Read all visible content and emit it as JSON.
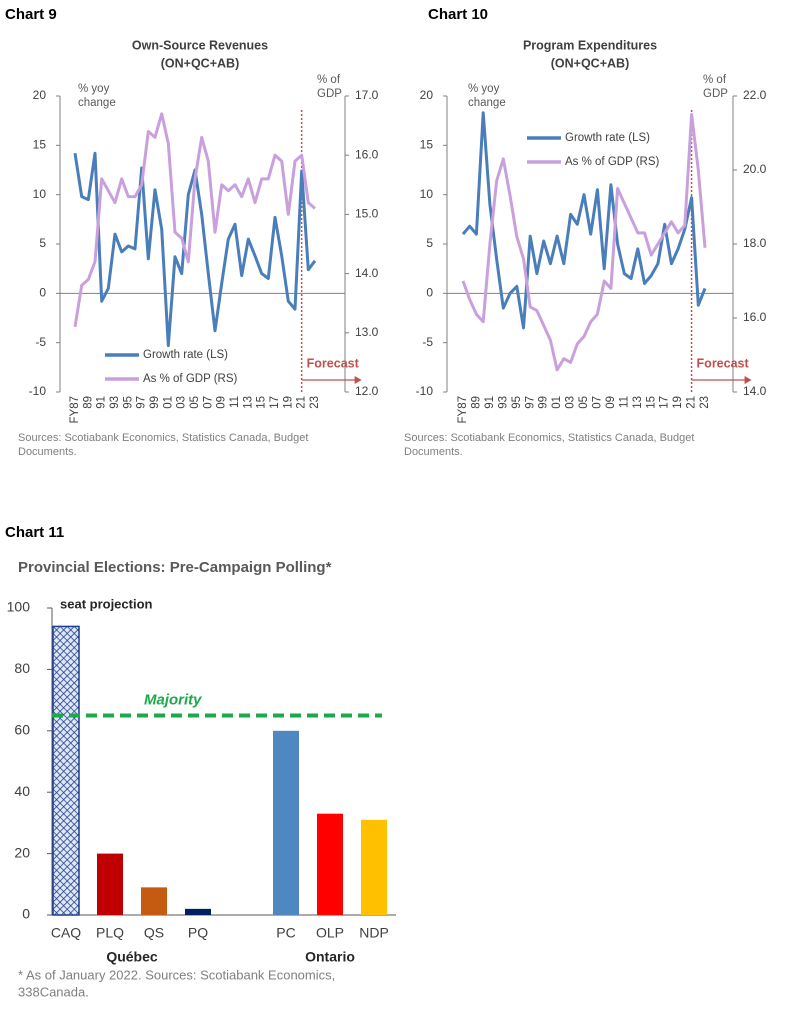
{
  "chart_data": [
    {
      "type": "line",
      "chart_label": "Chart 9",
      "title": "Own-Source Revenues",
      "subtitle": "(ON+QC+AB)",
      "ylabel": [
        "% yoy",
        "change"
      ],
      "y2label": [
        "% of",
        "GDP"
      ],
      "categories": [
        "FY87",
        null,
        "89",
        null,
        "91",
        null,
        "93",
        null,
        "95",
        null,
        "97",
        null,
        "99",
        null,
        "01",
        null,
        "03",
        null,
        "05",
        null,
        "07",
        null,
        "09",
        null,
        "11",
        null,
        "13",
        null,
        "15",
        null,
        "17",
        null,
        "19",
        null,
        "21",
        null,
        "23"
      ],
      "series": [
        {
          "name": "Growth rate (LS)",
          "color": "#4a7ebb",
          "values": [
            14.2,
            9.8,
            9.5,
            14.2,
            -0.8,
            0.5,
            6.0,
            4.2,
            4.8,
            4.5,
            12.7,
            3.5,
            10.5,
            6.5,
            -5.3,
            3.7,
            2.0,
            10.0,
            12.5,
            8.0,
            2.0,
            -3.8,
            1.0,
            5.5,
            7.0,
            1.8,
            5.5,
            3.8,
            2.0,
            1.5,
            7.7,
            3.8,
            -0.8,
            -1.6,
            12.4,
            2.4,
            3.3
          ]
        },
        {
          "name": "As % of GDP (RS)",
          "color": "#c9a0dc",
          "axis": "y2",
          "values": [
            13.1,
            13.8,
            13.9,
            14.2,
            15.6,
            15.4,
            15.2,
            15.6,
            15.3,
            15.3,
            15.5,
            16.4,
            16.3,
            16.7,
            16.2,
            14.7,
            14.6,
            14.2,
            15.6,
            16.3,
            15.9,
            14.7,
            15.5,
            15.4,
            15.5,
            15.3,
            15.6,
            15.2,
            15.6,
            15.6,
            16.0,
            15.9,
            15.0,
            15.9,
            16.0,
            15.2,
            15.1
          ]
        }
      ],
      "ylim": [
        -10,
        20
      ],
      "yticks": [
        -10,
        -5,
        0,
        5,
        10,
        15,
        20
      ],
      "y2lim": [
        12,
        17
      ],
      "y2ticks": [
        {
          "value": 12,
          "label": "12.0"
        },
        {
          "value": 13,
          "label": "13.0"
        },
        {
          "value": 14,
          "label": "14.0"
        },
        {
          "value": 15,
          "label": "15.0"
        },
        {
          "value": 16,
          "label": "16.0"
        },
        {
          "value": 17,
          "label": "17.0"
        }
      ],
      "legend": "lower left",
      "forecast_label": "Forecast",
      "forecast_start": "21",
      "forecast_color": "#c0504d",
      "source": [
        "Sources: Scotiabank Economics, Statistics Canada, Budget",
        "Documents."
      ]
    },
    {
      "type": "line",
      "chart_label": "Chart 10",
      "title": "Program Expenditures",
      "subtitle": "(ON+QC+AB)",
      "ylabel": [
        "% yoy",
        "change"
      ],
      "y2label": [
        "% of",
        "GDP"
      ],
      "categories": [
        "FY87",
        null,
        "89",
        null,
        "91",
        null,
        "93",
        null,
        "95",
        null,
        "97",
        null,
        "99",
        null,
        "01",
        null,
        "03",
        null,
        "05",
        null,
        "07",
        null,
        "09",
        null,
        "11",
        null,
        "13",
        null,
        "15",
        null,
        "17",
        null,
        "19",
        null,
        "21",
        null,
        "23"
      ],
      "series": [
        {
          "name": "Growth rate (LS)",
          "color": "#4a7ebb",
          "values": [
            6.0,
            6.8,
            6.0,
            18.3,
            9.0,
            3.5,
            -1.5,
            0,
            0.7,
            -3.5,
            5.8,
            2.0,
            5.3,
            3.0,
            5.8,
            3.0,
            8.0,
            7.0,
            10.0,
            6.0,
            10.5,
            2.5,
            11.0,
            5.0,
            2.0,
            1.5,
            4.5,
            1.0,
            1.8,
            3.0,
            7.0,
            3.0,
            4.5,
            6.5,
            9.7,
            -1.2,
            0.5
          ]
        },
        {
          "name": "As % of GDP (RS)",
          "color": "#c9a0dc",
          "axis": "y2",
          "values": [
            17.0,
            16.5,
            16.1,
            15.9,
            18.0,
            19.7,
            20.3,
            19.3,
            18.2,
            17.6,
            16.3,
            16.2,
            15.8,
            15.4,
            14.6,
            14.9,
            14.8,
            15.3,
            15.5,
            15.9,
            16.1,
            17.0,
            16.8,
            19.5,
            19.1,
            18.7,
            18.3,
            18.3,
            17.7,
            18.0,
            18.3,
            18.6,
            18.3,
            18.5,
            21.5,
            20.0,
            17.9
          ]
        }
      ],
      "ylim": [
        -10,
        20
      ],
      "yticks": [
        -10,
        -5,
        0,
        5,
        10,
        15,
        20
      ],
      "y2lim": [
        14,
        22
      ],
      "y2ticks": [
        {
          "value": 14,
          "label": "14.0"
        },
        {
          "value": 16,
          "label": "16.0"
        },
        {
          "value": 18,
          "label": "18.0"
        },
        {
          "value": 20,
          "label": "20.0"
        },
        {
          "value": 22,
          "label": "22.0"
        }
      ],
      "legend": "upper left",
      "forecast_label": "Forecast",
      "forecast_start": "21",
      "forecast_color": "#c0504d",
      "source": [
        "Sources: Scotiabank Economics, Statistics Canada, Budget",
        "Documents."
      ]
    },
    {
      "type": "bar",
      "chart_label": "Chart 11",
      "title": "Provincial Elections: Pre-Campaign Polling*",
      "ylabel": "seat projection",
      "categories": [
        "CAQ",
        "PLQ",
        "QS",
        "PQ",
        null,
        "PC",
        "OLP",
        "NDP"
      ],
      "values": [
        94,
        20,
        9,
        2,
        null,
        60,
        33,
        31
      ],
      "colors": [
        "#1f3f8f",
        "#c00000",
        "#c55a11",
        "#002060",
        null,
        "#4f87c0",
        "#ff0000",
        "#ffc000"
      ],
      "hatched": [
        true,
        false,
        false,
        false,
        false,
        false,
        false,
        false
      ],
      "ylim": [
        0,
        100
      ],
      "yticks": [
        0,
        20,
        40,
        60,
        80,
        100
      ],
      "reference_line": {
        "label": "Majority",
        "value": 65,
        "color": "#1aaa4a"
      },
      "group_labels": [
        "Québec",
        "Ontario"
      ],
      "note": [
        "* As of January 2022. Sources: Scotiabank Economics,",
        "338Canada."
      ]
    }
  ]
}
